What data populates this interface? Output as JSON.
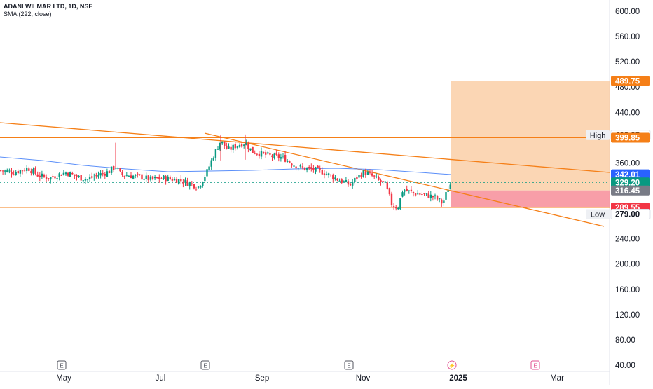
{
  "header": {
    "symbol_title": "ADANI WILMAR LTD, 1D, NSE",
    "indicator_label": "SMA (222, close)"
  },
  "chart_data": {
    "type": "candlestick",
    "y_axis": {
      "ticks": [
        "600.00",
        "560.00",
        "520.00",
        "480.00",
        "440.00",
        "400.00",
        "360.00",
        "320.00",
        "240.00",
        "200.00",
        "160.00",
        "120.00",
        "80.00",
        "40.00"
      ],
      "tick_values": [
        600,
        560,
        520,
        480,
        440,
        400,
        360,
        320,
        240,
        200,
        160,
        120,
        80,
        40
      ],
      "range": [
        36,
        615
      ]
    },
    "x_axis": {
      "labels": [
        "May",
        "Jul",
        "Sep",
        "Nov",
        "2025",
        "Mar"
      ]
    },
    "price_badges": [
      {
        "label": "489.75",
        "value": 489.75,
        "color": "#f57f17",
        "text_color": "#ffffff"
      },
      {
        "label": "403.95",
        "value": 403.95,
        "color": "#ffffff",
        "text_color": "#131722",
        "tag": "High"
      },
      {
        "label": "399.85",
        "value": 399.85,
        "color": "#f57f17",
        "text_color": "#ffffff"
      },
      {
        "label": "342.01",
        "value": 342.01,
        "color": "#2962ff",
        "text_color": "#ffffff"
      },
      {
        "label": "329.20",
        "value": 329.2,
        "color": "#089981",
        "text_color": "#ffffff"
      },
      {
        "label": "316.45",
        "value": 316.45,
        "color": "#787b86",
        "text_color": "#ffffff"
      },
      {
        "label": "289.55",
        "value": 289.55,
        "color": "#f23645",
        "text_color": "#ffffff"
      },
      {
        "label": "279.00",
        "value": 279.0,
        "color": "#ffffff",
        "text_color": "#131722",
        "tag": "Low"
      }
    ],
    "horizontal_lines": [
      {
        "value": 399.85,
        "color": "#f57f17"
      },
      {
        "value": 289.55,
        "color": "#f57f17"
      }
    ],
    "last_price": 329.2,
    "position": {
      "entry": 316.45,
      "target": 489.75,
      "stop": 289.55
    },
    "trendlines": [
      {
        "from": {
          "x": "start",
          "y": 383
        },
        "to": {
          "x": "far",
          "y": 337
        },
        "color": "#f57f17"
      },
      {
        "from": {
          "x": "Aug",
          "y": 404
        },
        "to": {
          "x": "far",
          "y": 257
        },
        "color": "#f57f17"
      }
    ],
    "sma": {
      "name": "SMA (222, close)",
      "color": "#5b8ff9"
    },
    "event_markers": [
      "E",
      "E",
      "E",
      "⚡",
      "E"
    ],
    "colors": {
      "up": "#089981",
      "down": "#f23645",
      "profit_zone": "#f9c89b",
      "loss_zone": "#f7949e"
    }
  }
}
